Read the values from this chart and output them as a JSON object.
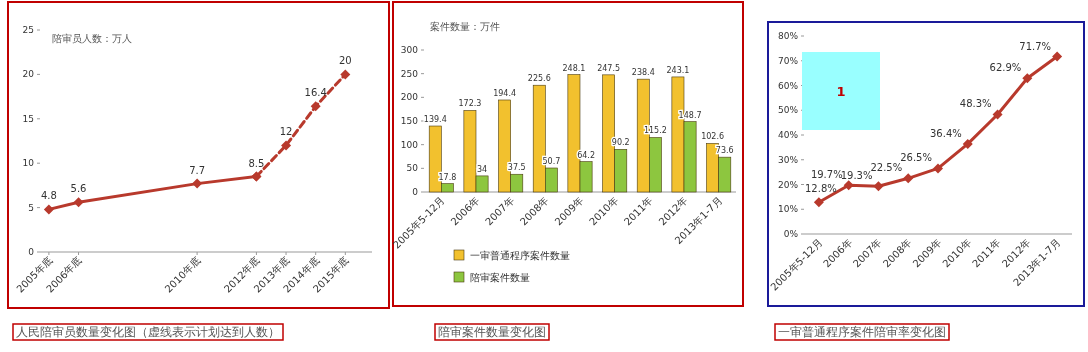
{
  "chart_data": [
    {
      "type": "line",
      "title": "人民陪审员数量变化图（虚线表示计划达到人数）",
      "annotations": [
        "陪审员人数：万人"
      ],
      "xlim": [
        2004.7,
        2015.9
      ],
      "xticks": [
        {
          "value": 2005,
          "label": "2005年底"
        },
        {
          "value": 2006,
          "label": "2006年底"
        },
        {
          "value": 2010,
          "label": "2010年底"
        },
        {
          "value": 2012,
          "label": "2012年底"
        },
        {
          "value": 2013,
          "label": "2013年底"
        },
        {
          "value": 2014,
          "label": "2014年底"
        },
        {
          "value": 2015,
          "label": "2015年底"
        }
      ],
      "ylim": [
        0,
        25
      ],
      "yticks": [
        0,
        5,
        10,
        15,
        20,
        25
      ],
      "marker": "diamond",
      "series": [
        {
          "color": "#b8392c",
          "line_style": "solid",
          "x": [
            2005,
            2006,
            2010,
            2012
          ],
          "values": [
            4.8,
            5.6,
            7.7,
            8.5
          ],
          "value_labels": [
            "4.8",
            "5.6",
            "7.7",
            "8.5"
          ]
        },
        {
          "color": "#b8392c",
          "line_style": "dashed",
          "x": [
            2012,
            2013,
            2014,
            2015
          ],
          "values": [
            8.5,
            12,
            16.4,
            20
          ],
          "value_labels": [
            null,
            "12",
            "16.4",
            "20"
          ]
        }
      ]
    },
    {
      "type": "bar",
      "title": "陪审案件数量变化图",
      "annotations": [
        "案件数量：万件"
      ],
      "categories": [
        "2005年5-12月",
        "2006年",
        "2007年",
        "2008年",
        "2009年",
        "2010年",
        "2011年",
        "2012年",
        "2013年1-7月"
      ],
      "ylim": [
        0,
        300
      ],
      "yticks": [
        0,
        50,
        100,
        150,
        200,
        250,
        300
      ],
      "data_labels": true,
      "legend": "bottom",
      "series": [
        {
          "name": "一审普通程序案件数量",
          "color": "#f2c12e",
          "values": [
            139.4,
            172.3,
            194.4,
            225.6,
            248.1,
            247.5,
            238.4,
            243.1,
            102.6
          ]
        },
        {
          "name": "陪审案件数量",
          "color": "#8dc63f",
          "values": [
            17.8,
            34,
            37.5,
            50.7,
            64.2,
            90.2,
            115.2,
            148.7,
            73.6
          ]
        }
      ]
    },
    {
      "type": "line",
      "title": "一审普通程序案件陪审率变化图",
      "annotations": [
        "1"
      ],
      "categories": [
        "2005年5-12月",
        "2006年",
        "2007年",
        "2008年",
        "2009年",
        "2010年",
        "2011年",
        "2012年",
        "2013年1-7月"
      ],
      "ylim": [
        0,
        80
      ],
      "yticks": [
        {
          "value": 0,
          "label": "0%"
        },
        {
          "value": 10,
          "label": "10%"
        },
        {
          "value": 20,
          "label": "20%"
        },
        {
          "value": 30,
          "label": "30%"
        },
        {
          "value": 40,
          "label": "40%"
        },
        {
          "value": 50,
          "label": "50%"
        },
        {
          "value": 60,
          "label": "60%"
        },
        {
          "value": 70,
          "label": "70%"
        },
        {
          "value": 80,
          "label": "80%"
        }
      ],
      "marker": "diamond",
      "series": [
        {
          "color": "#b8392c",
          "line_style": "solid",
          "values": [
            12.8,
            19.7,
            19.3,
            22.5,
            26.5,
            36.4,
            48.3,
            62.9,
            71.7
          ],
          "value_labels": [
            "12.8%",
            "19.7%",
            "19.3%",
            "22.5%",
            "26.5%",
            "36.4%",
            "48.3%",
            "62.9%",
            "71.7%"
          ]
        }
      ]
    }
  ]
}
